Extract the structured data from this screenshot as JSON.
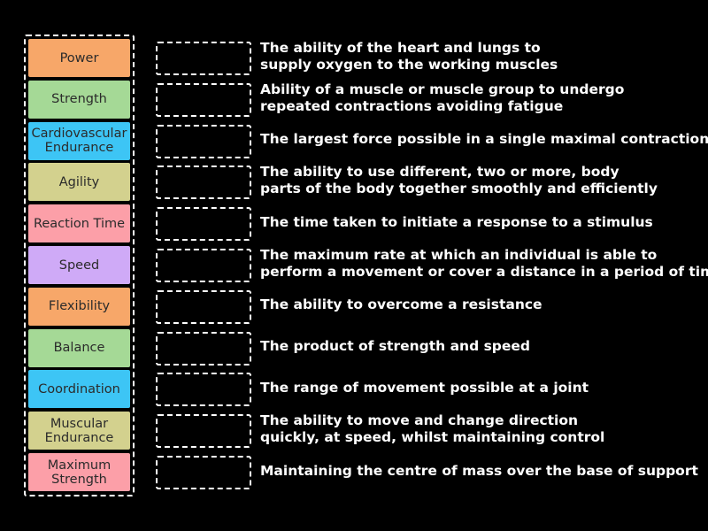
{
  "colors": {
    "background": "#000000",
    "orange": "#f7a769",
    "green": "#a5d996",
    "cyan": "#3dc5f5",
    "olive": "#d3d18e",
    "pink": "#fc9fa8",
    "purple": "#cfaaf7"
  },
  "tiles": [
    {
      "label": "Power",
      "color": "#f7a769"
    },
    {
      "label": "Strength",
      "color": "#a5d996"
    },
    {
      "label": "Cardiovascular Endurance",
      "color": "#3dc5f5"
    },
    {
      "label": "Agility",
      "color": "#d3d18e"
    },
    {
      "label": "Reaction Time",
      "color": "#fc9fa8"
    },
    {
      "label": "Speed",
      "color": "#cfaaf7"
    },
    {
      "label": "Flexibility",
      "color": "#f7a769"
    },
    {
      "label": "Balance",
      "color": "#a5d996"
    },
    {
      "label": "Coordination",
      "color": "#3dc5f5"
    },
    {
      "label": "Muscular Endurance",
      "color": "#d3d18e"
    },
    {
      "label": "Maximum Strength",
      "color": "#fc9fa8"
    }
  ],
  "definitions": [
    {
      "line1": "The ability of the heart and lungs to",
      "line2": "supply oxygen to the working muscles"
    },
    {
      "line1": "Ability of a muscle or muscle group to undergo",
      "line2": "repeated contractions avoiding fatigue"
    },
    {
      "line1": "The largest force possible in a single maximal contraction",
      "line2": ""
    },
    {
      "line1": "The ability to use different, two or more, body",
      "line2": "parts of the body together smoothly and efficiently"
    },
    {
      "line1": "The time taken to initiate a response to a stimulus",
      "line2": ""
    },
    {
      "line1": "The maximum rate at which an individual is able to",
      "line2": "perform a movement or cover a distance in a period of time"
    },
    {
      "line1": "The ability to overcome a resistance",
      "line2": ""
    },
    {
      "line1": "The product of strength and speed",
      "line2": ""
    },
    {
      "line1": "The range of movement possible at a joint",
      "line2": ""
    },
    {
      "line1": "The ability to move and change direction",
      "line2": "quickly, at speed, whilst maintaining control"
    },
    {
      "line1": "Maintaining the centre of mass over the base of support",
      "line2": ""
    }
  ]
}
